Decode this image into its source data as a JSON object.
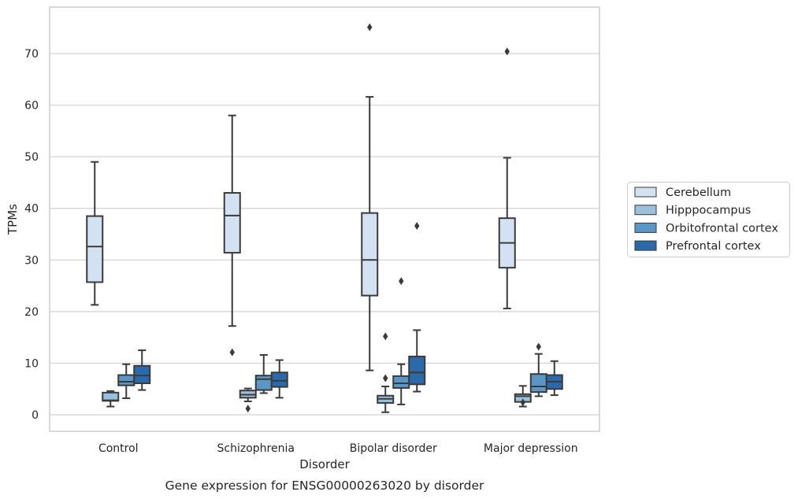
{
  "caption": "Gene expression for ENSG00000263020 by disorder",
  "chart_data": {
    "type": "box",
    "xlabel": "Disorder",
    "ylabel": "TPMs",
    "ylim": [
      -3.2,
      79
    ],
    "yticks": [
      0,
      10,
      20,
      30,
      40,
      50,
      60,
      70
    ],
    "grid": "horizontal",
    "legend_position": "right",
    "categories": [
      "Control",
      "Schizophrenia",
      "Bipolar disorder",
      "Major depression"
    ],
    "series": [
      {
        "name": "Cerebellum",
        "color": "#d3e2f2",
        "boxes": [
          {
            "whisker_low": 21.3,
            "q1": 25.7,
            "median": 32.6,
            "q3": 38.5,
            "whisker_high": 49.0,
            "outliers": []
          },
          {
            "whisker_low": 17.2,
            "q1": 31.4,
            "median": 38.6,
            "q3": 43.0,
            "whisker_high": 58.0,
            "outliers": [
              12.1
            ]
          },
          {
            "whisker_low": 8.6,
            "q1": 23.1,
            "median": 30.0,
            "q3": 39.1,
            "whisker_high": 61.6,
            "outliers": [
              75.1
            ]
          },
          {
            "whisker_low": 20.6,
            "q1": 28.5,
            "median": 33.3,
            "q3": 38.1,
            "whisker_high": 49.8,
            "outliers": [
              70.4
            ]
          }
        ]
      },
      {
        "name": "Hipppocampus",
        "color": "#9ac0dd",
        "boxes": [
          {
            "whisker_low": 1.6,
            "q1": 2.7,
            "median": 2.8,
            "q3": 4.3,
            "whisker_high": 4.6,
            "outliers": []
          },
          {
            "whisker_low": 2.6,
            "q1": 3.3,
            "median": 3.9,
            "q3": 4.7,
            "whisker_high": 5.1,
            "outliers": [
              1.2
            ]
          },
          {
            "whisker_low": 0.5,
            "q1": 2.3,
            "median": 3.1,
            "q3": 3.7,
            "whisker_high": 5.5,
            "outliers": [
              7.1,
              15.2
            ]
          },
          {
            "whisker_low": 1.6,
            "q1": 2.5,
            "median": 3.6,
            "q3": 4.0,
            "whisker_high": 5.6,
            "outliers": [
              2.4
            ]
          }
        ]
      },
      {
        "name": "Orbitofrontal cortex",
        "color": "#5a97c6",
        "boxes": [
          {
            "whisker_low": 3.2,
            "q1": 5.7,
            "median": 6.4,
            "q3": 7.7,
            "whisker_high": 9.8,
            "outliers": []
          },
          {
            "whisker_low": 4.2,
            "q1": 4.8,
            "median": 6.9,
            "q3": 7.6,
            "whisker_high": 11.6,
            "outliers": []
          },
          {
            "whisker_low": 2.0,
            "q1": 5.2,
            "median": 6.1,
            "q3": 7.5,
            "whisker_high": 9.8,
            "outliers": [
              25.9
            ]
          },
          {
            "whisker_low": 3.6,
            "q1": 4.4,
            "median": 5.5,
            "q3": 7.9,
            "whisker_high": 11.8,
            "outliers": [
              13.2
            ]
          }
        ]
      },
      {
        "name": "Prefrontal cortex",
        "color": "#2a6aaa",
        "boxes": [
          {
            "whisker_low": 4.8,
            "q1": 6.1,
            "median": 7.6,
            "q3": 9.5,
            "whisker_high": 12.5,
            "outliers": []
          },
          {
            "whisker_low": 3.3,
            "q1": 5.4,
            "median": 6.6,
            "q3": 8.2,
            "whisker_high": 10.6,
            "outliers": []
          },
          {
            "whisker_low": 4.5,
            "q1": 5.9,
            "median": 8.2,
            "q3": 11.3,
            "whisker_high": 16.4,
            "outliers": [
              36.6
            ]
          },
          {
            "whisker_low": 3.8,
            "q1": 5.0,
            "median": 6.4,
            "q3": 7.7,
            "whisker_high": 10.4,
            "outliers": []
          }
        ]
      }
    ]
  }
}
